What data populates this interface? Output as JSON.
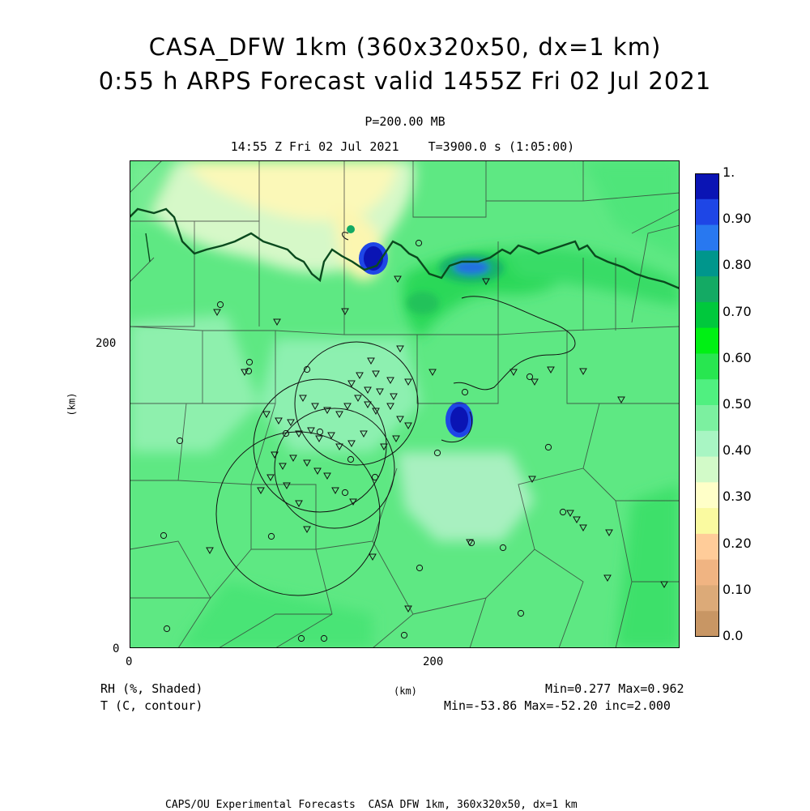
{
  "title": {
    "line1": "CASA_DFW 1km (360x320x50, dx=1 km)",
    "line2": "0:55 h ARPS Forecast valid 1455Z Fri 02 Jul 2021"
  },
  "subtitle": {
    "pressure": "P=200.00 MB",
    "time": "14:55 Z Fri 02 Jul 2021    T=3900.0 s (1:05:00)"
  },
  "axes": {
    "x_ticks": [
      "0",
      "200"
    ],
    "y_ticks": [
      "0",
      "200"
    ],
    "x_label": "(km)",
    "y_label": "(km)",
    "x_range_km": [
      0,
      360
    ],
    "y_range_km": [
      0,
      320
    ]
  },
  "legend": {
    "shaded_label": "RH (%, Shaded)",
    "contour_label": "T (C, contour)",
    "shaded_stats": "Min=0.277 Max=0.962",
    "contour_stats": "Min=-53.86 Max=-52.20 inc=2.000"
  },
  "colorbar": {
    "labels": [
      "1.",
      "0.90",
      "0.80",
      "0.70",
      "0.60",
      "0.50",
      "0.40",
      "0.30",
      "0.20",
      "0.10",
      "0.0"
    ],
    "colors": [
      "#0a14b4",
      "#1e46e6",
      "#2878f0",
      "#00968c",
      "#14aa64",
      "#00c83c",
      "#00f014",
      "#28e650",
      "#50f080",
      "#7cf0a0",
      "#a8f5c3",
      "#d2fac8",
      "#ffffc8",
      "#fafaa0",
      "#ffcc99",
      "#f0b482",
      "#dcaa78",
      "#c89664"
    ]
  },
  "footer": "CAPS/OU Experimental Forecasts  CASA DFW 1km, 360x320x50, dx=1 km",
  "chart_data": {
    "type": "heatmap",
    "variable": "RH",
    "contour_variable": "T",
    "min": 0.277,
    "max": 0.962,
    "t_min": -53.86,
    "t_max": -52.2,
    "t_inc": 2.0,
    "pressure_mb": 200.0,
    "valid": "1455Z Fri 02 Jul 2021"
  }
}
